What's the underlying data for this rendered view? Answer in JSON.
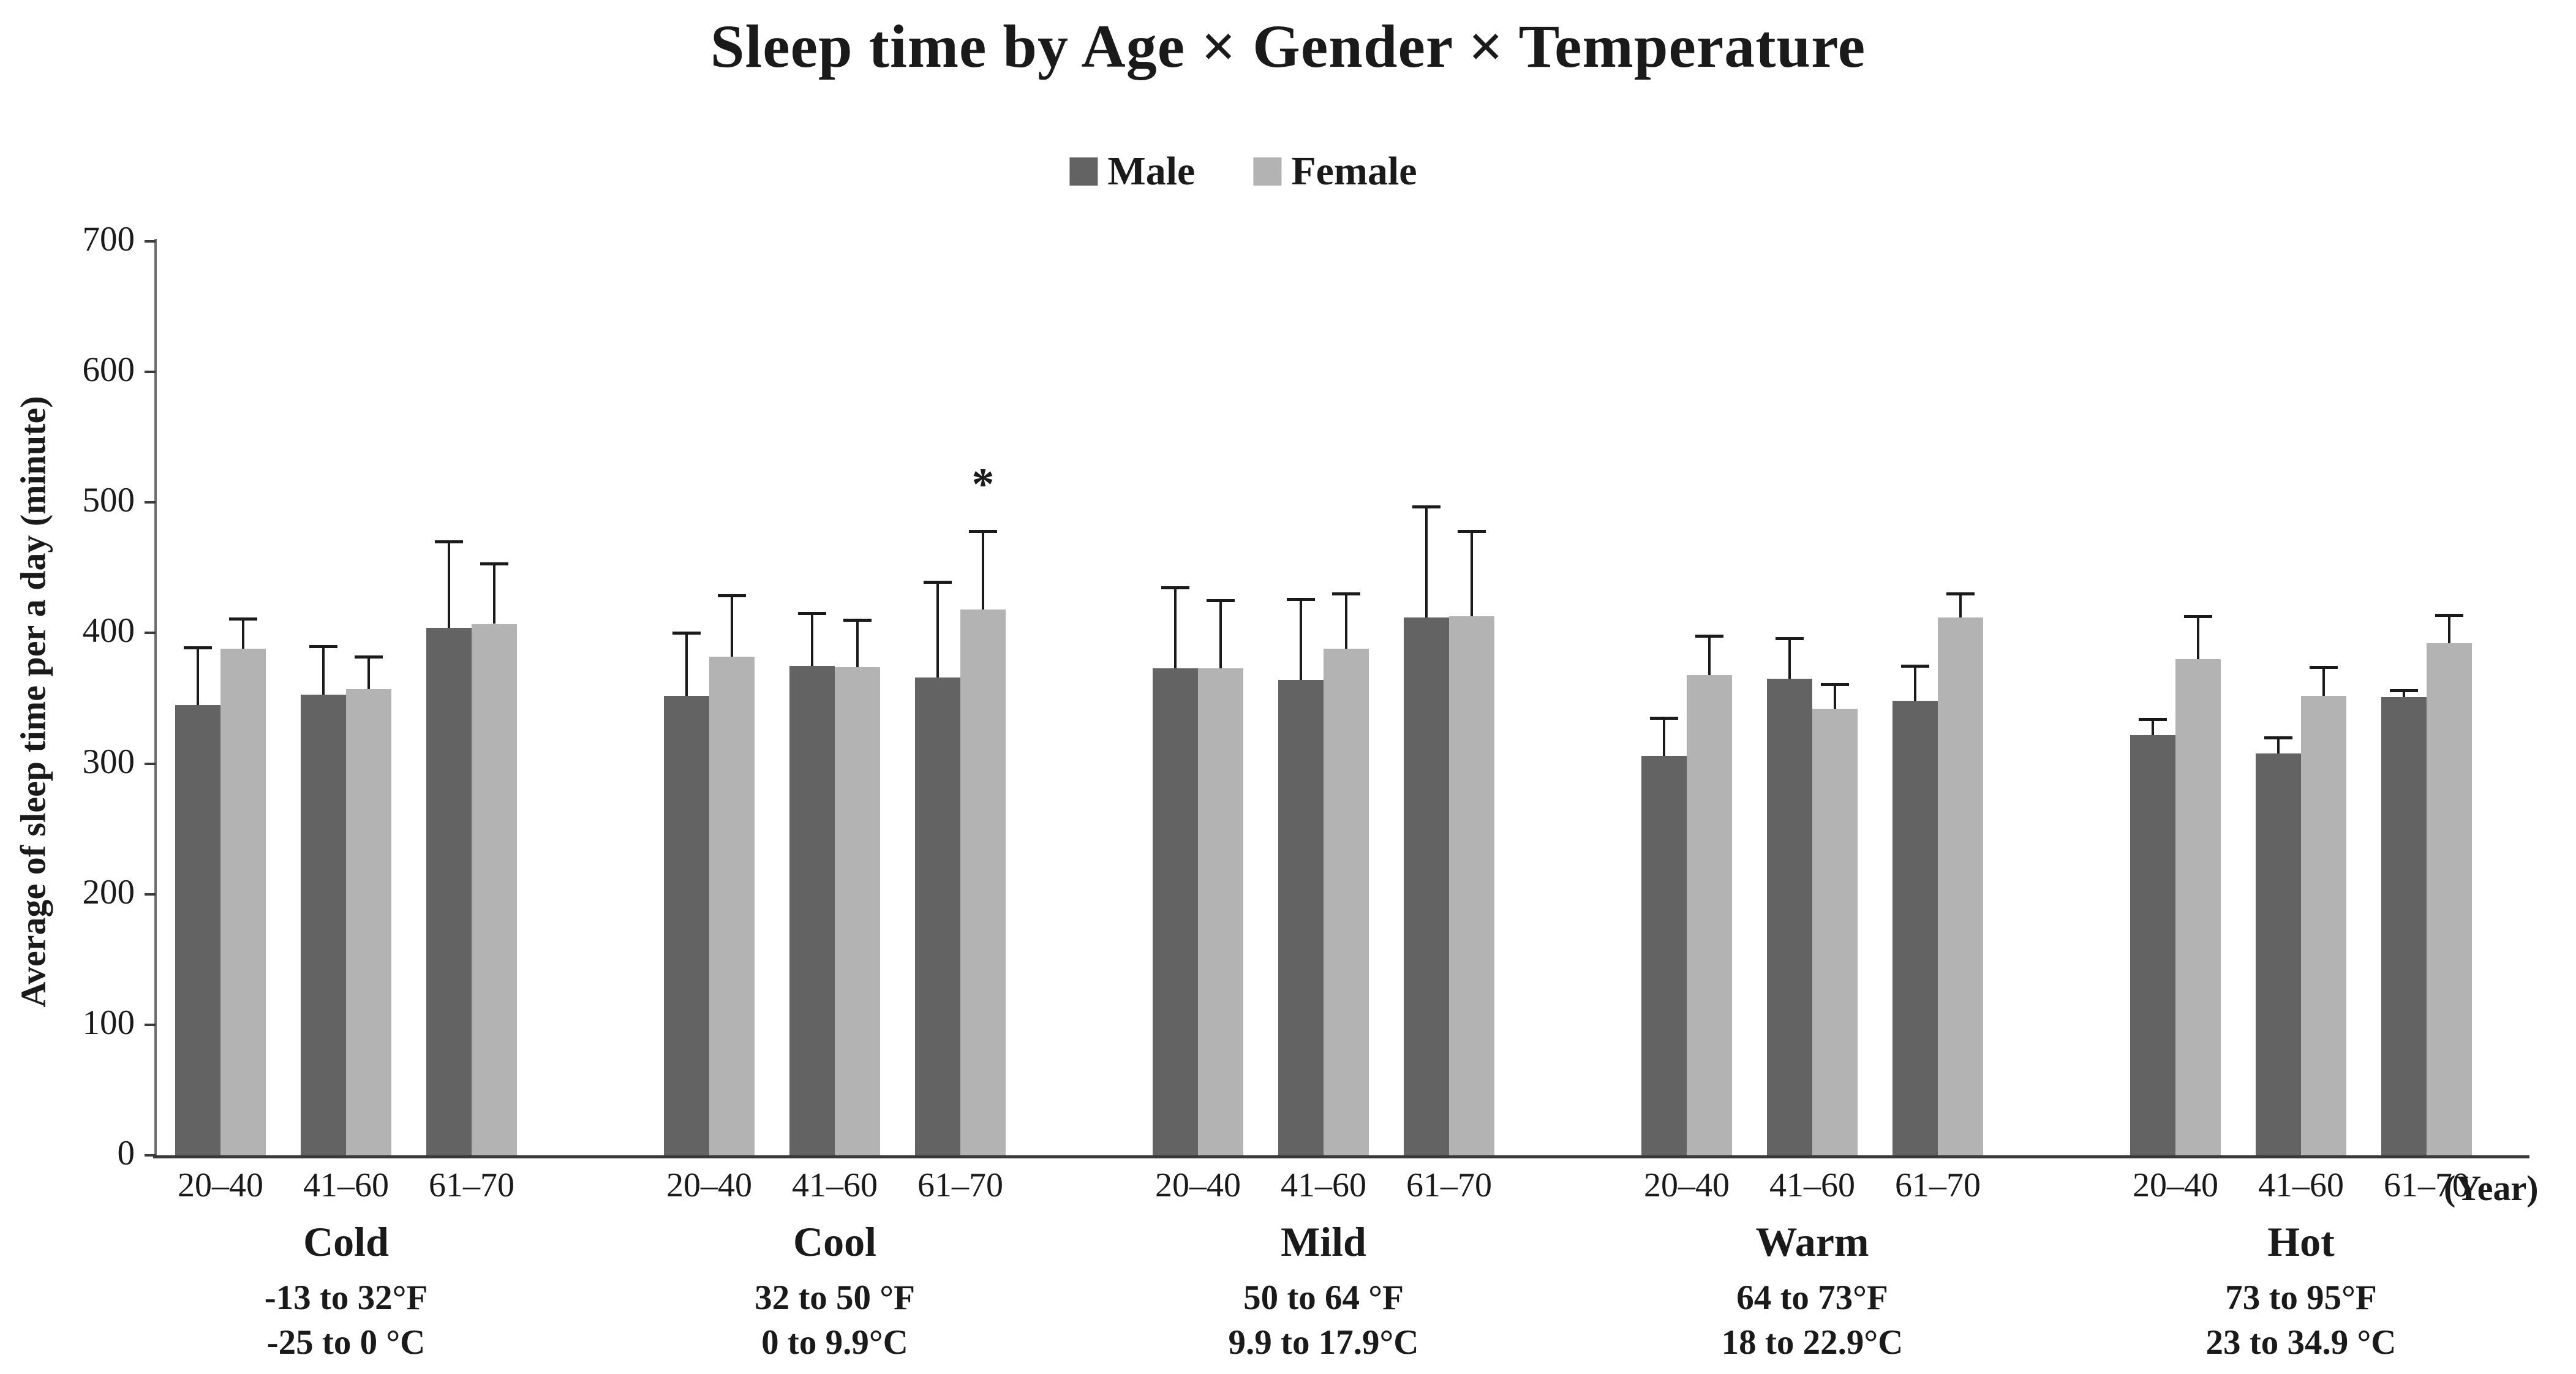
{
  "title": "Sleep time by Age × Gender × Temperature",
  "legend": {
    "male_label": "Male",
    "female_label": "Female",
    "male_color": "#636363",
    "female_color": "#b3b3b3"
  },
  "y_axis": {
    "title": "Average of sleep time per a day (minute)",
    "ticks": [
      0,
      100,
      200,
      300,
      400,
      500,
      600,
      700
    ],
    "min": 0,
    "max": 700
  },
  "x_axis": {
    "unit_label": "(Year)",
    "age_categories": [
      "20–40",
      "41–60",
      "61–70"
    ]
  },
  "chart_data": {
    "type": "bar",
    "title": "Sleep time by Age × Gender × Temperature",
    "xlabel": "(Year)",
    "ylabel": "Average of sleep time per a day (minute)",
    "ylim": [
      0,
      700
    ],
    "grid": false,
    "legend_position": "top-center",
    "categories": [
      "20–40",
      "41–60",
      "61–70"
    ],
    "series_names": [
      "Male",
      "Female"
    ],
    "error_bars": "upper only",
    "groups": [
      {
        "name": "Cold",
        "range_f": "-13 to 32°F",
        "range_c": "-25 to 0 °C",
        "male": {
          "values": [
            345,
            353,
            404
          ],
          "errors": [
            44,
            37,
            66
          ]
        },
        "female": {
          "values": [
            388,
            357,
            407
          ],
          "errors": [
            23,
            25,
            46
          ]
        }
      },
      {
        "name": "Cool",
        "range_f": "32 to 50 °F",
        "range_c": "0 to 9.9°C",
        "male": {
          "values": [
            352,
            375,
            366
          ],
          "errors": [
            48,
            40,
            73
          ]
        },
        "female": {
          "values": [
            382,
            374,
            418
          ],
          "errors": [
            47,
            36,
            60
          ]
        }
      },
      {
        "name": "Mild",
        "range_f": "50 to 64 °F",
        "range_c": "9.9 to 17.9°C",
        "male": {
          "values": [
            373,
            364,
            412
          ],
          "errors": [
            62,
            62,
            85
          ]
        },
        "female": {
          "values": [
            373,
            388,
            413
          ],
          "errors": [
            52,
            42,
            65
          ]
        }
      },
      {
        "name": "Warm",
        "range_f": "64 to 73°F",
        "range_c": "18 to 22.9°C",
        "male": {
          "values": [
            306,
            365,
            348
          ],
          "errors": [
            29,
            31,
            27
          ]
        },
        "female": {
          "values": [
            368,
            342,
            412
          ],
          "errors": [
            30,
            19,
            18
          ]
        }
      },
      {
        "name": "Hot",
        "range_f": "73 to 95°F",
        "range_c": "23 to 34.9 °C",
        "male": {
          "values": [
            322,
            308,
            351
          ],
          "errors": [
            12,
            12,
            5
          ]
        },
        "female": {
          "values": [
            380,
            352,
            392
          ],
          "errors": [
            33,
            22,
            22
          ]
        }
      }
    ],
    "significance": {
      "marker": "*",
      "group": "Cool",
      "series": "Female",
      "category": "61–70"
    }
  }
}
